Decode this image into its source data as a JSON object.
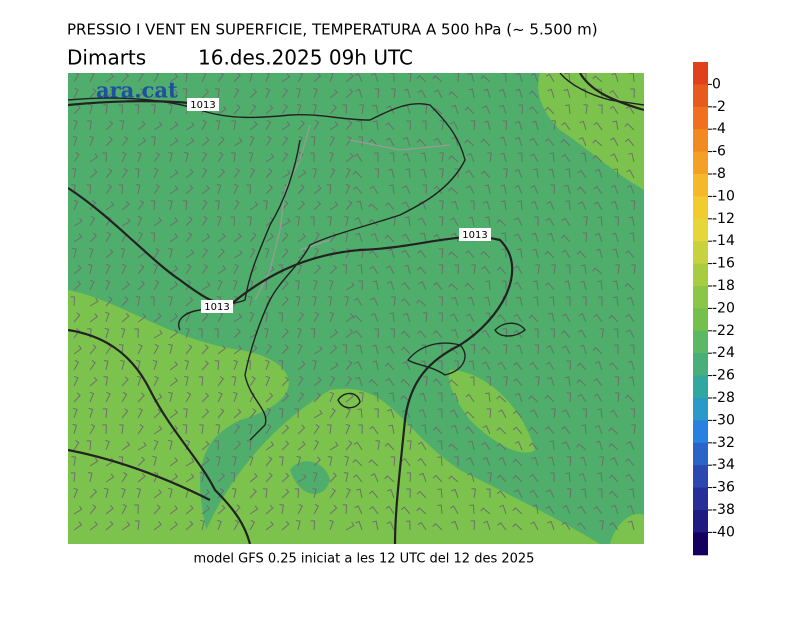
{
  "header": {
    "title": "PRESSIO I VENT EN SUPERFICIE, TEMPERATURA A 500 hPa (~ 5.500 m)",
    "day": "Dimarts",
    "datetime": "16.des.2025 09h UTC"
  },
  "logo": "ara.cat",
  "isobar_labels": [
    "1013",
    "1013",
    "1013"
  ],
  "footer": "model GFS 0.25 iniciat a les 12 UTC del 12 des 2025",
  "colorbar": {
    "ticks": [
      0,
      -2,
      -4,
      -6,
      -8,
      -10,
      -12,
      -14,
      -16,
      -18,
      -20,
      -22,
      -24,
      -26,
      -28,
      -30,
      -32,
      -34,
      -36,
      -38,
      -40
    ],
    "colors": [
      "#e0401a",
      "#e85a1c",
      "#f07020",
      "#f28a22",
      "#f4a026",
      "#f4b82a",
      "#f2cc2e",
      "#e6d63a",
      "#c8d23c",
      "#a8cc40",
      "#8cc646",
      "#74c04c",
      "#5cb864",
      "#48ae7a",
      "#30a8a0",
      "#2a9ac8",
      "#2880e0",
      "#2a64c8",
      "#2a48b0",
      "#262e98",
      "#1e1c80",
      "#14005e"
    ]
  }
}
